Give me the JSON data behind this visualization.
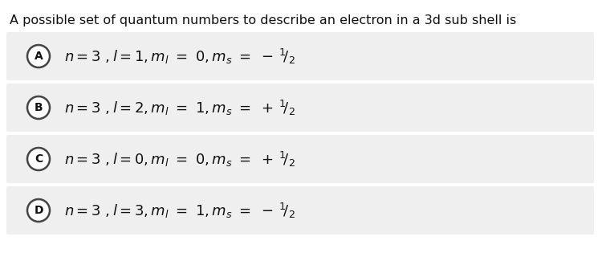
{
  "title": "A possible set of quantum numbers to describe an electron in a 3d sub shell is",
  "title_fontsize": 11.5,
  "background_color": "#ffffff",
  "option_bg_color": "#efefef",
  "options": [
    {
      "label": "A",
      "l_val": "1",
      "ml_val": "0",
      "sign": "-"
    },
    {
      "label": "B",
      "l_val": "2",
      "ml_val": "1",
      "sign": "+"
    },
    {
      "label": "C",
      "l_val": "0",
      "ml_val": "0",
      "sign": "+"
    },
    {
      "label": "D",
      "l_val": "3",
      "ml_val": "1",
      "sign": "-"
    }
  ],
  "circle_edge_color": "#444444",
  "circle_face_color": "#ffffff",
  "label_fontsize": 10,
  "option_fontsize": 13,
  "fig_width": 7.5,
  "fig_height": 3.2,
  "fig_dpi": 100
}
